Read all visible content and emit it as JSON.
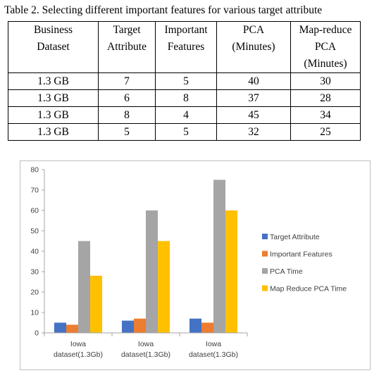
{
  "table": {
    "caption": "Table 2.  Selecting different important features for various target attribute",
    "headers": [
      [
        "Business",
        "Dataset"
      ],
      [
        "Target",
        "Attribute"
      ],
      [
        "Important",
        "Features"
      ],
      [
        "PCA",
        "(Minutes)"
      ],
      [
        "Map-reduce",
        "PCA",
        "(Minutes)"
      ]
    ],
    "rows": [
      [
        "1.3 GB",
        "7",
        "5",
        "40",
        "30"
      ],
      [
        "1.3 GB",
        "6",
        "8",
        "37",
        "28"
      ],
      [
        "1.3 GB",
        "8",
        "4",
        "45",
        "34"
      ],
      [
        "1.3 GB",
        "5",
        "5",
        "32",
        "25"
      ]
    ]
  },
  "chart_data": {
    "type": "bar",
    "categories": [
      [
        "Iowa",
        "dataset(1.3Gb)"
      ],
      [
        "Iowa",
        "dataset(1.3Gb)"
      ],
      [
        "Iowa",
        "dataset(1.3Gb)"
      ]
    ],
    "series": [
      {
        "name": "Target Attribute",
        "color": "#4472c4",
        "values": [
          5,
          6,
          7
        ]
      },
      {
        "name": "Important Features",
        "color": "#ed7d31",
        "values": [
          4,
          7,
          5
        ]
      },
      {
        "name": "PCA Time",
        "color": "#a5a5a5",
        "values": [
          45,
          60,
          75
        ]
      },
      {
        "name": "Map Reduce PCA Time",
        "color": "#ffc000",
        "values": [
          28,
          45,
          60
        ]
      }
    ],
    "ylim": [
      0,
      80
    ],
    "yticks": [
      "0",
      "10",
      "20",
      "30",
      "40",
      "50",
      "60",
      "70",
      "80"
    ],
    "grid": false,
    "legend": "right"
  }
}
